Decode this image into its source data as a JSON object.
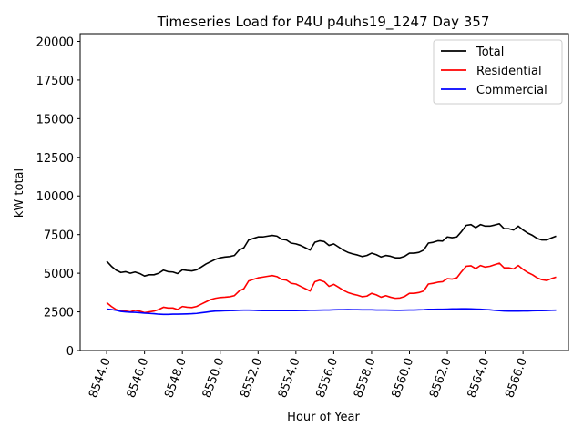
{
  "chart_data": {
    "type": "line",
    "title": "Timeseries Load for P4U p4uhs19_1247  Day 357",
    "xlabel": "Hour of Year",
    "ylabel": "kW total",
    "xlim": [
      8542.6,
      8568.4
    ],
    "ylim": [
      0,
      20500
    ],
    "xticks": [
      8544,
      8546,
      8548,
      8550,
      8552,
      8554,
      8556,
      8558,
      8560,
      8562,
      8564,
      8566
    ],
    "xtick_labels": [
      "8544.0",
      "8546.0",
      "8548.0",
      "8550.0",
      "8552.0",
      "8554.0",
      "8556.0",
      "8558.0",
      "8560.0",
      "8562.0",
      "8564.0",
      "8566.0"
    ],
    "yticks": [
      0,
      2500,
      5000,
      7500,
      10000,
      12500,
      15000,
      17500,
      20000
    ],
    "ytick_labels": [
      "0",
      "2500",
      "5000",
      "7500",
      "10000",
      "12500",
      "15000",
      "17500",
      "20000"
    ],
    "legend_position": "top-right",
    "grid": false,
    "x": [
      8544.0,
      8544.25,
      8544.5,
      8544.75,
      8545.0,
      8545.25,
      8545.5,
      8545.75,
      8546.0,
      8546.25,
      8546.5,
      8546.75,
      8547.0,
      8547.25,
      8547.5,
      8547.75,
      8548.0,
      8548.25,
      8548.5,
      8548.75,
      8549.0,
      8549.25,
      8549.5,
      8549.75,
      8550.0,
      8550.25,
      8550.5,
      8550.75,
      8551.0,
      8551.25,
      8551.5,
      8551.75,
      8552.0,
      8552.25,
      8552.5,
      8552.75,
      8553.0,
      8553.25,
      8553.5,
      8553.75,
      8554.0,
      8554.25,
      8554.5,
      8554.75,
      8555.0,
      8555.25,
      8555.5,
      8555.75,
      8556.0,
      8556.25,
      8556.5,
      8556.75,
      8557.0,
      8557.25,
      8557.5,
      8557.75,
      8558.0,
      8558.25,
      8558.5,
      8558.75,
      8559.0,
      8559.25,
      8559.5,
      8559.75,
      8560.0,
      8560.25,
      8560.5,
      8560.75,
      8561.0,
      8561.25,
      8561.5,
      8561.75,
      8562.0,
      8562.25,
      8562.5,
      8562.75,
      8563.0,
      8563.25,
      8563.5,
      8563.75,
      8564.0,
      8564.25,
      8564.5,
      8564.75,
      8565.0,
      8565.25,
      8565.5,
      8565.75,
      8566.0,
      8566.25,
      8566.5,
      8566.75,
      8567.0,
      8567.25,
      8567.5,
      8567.75
    ],
    "series": [
      {
        "name": "Total",
        "color": "#000000",
        "values": [
          5780,
          5450,
          5200,
          5050,
          5100,
          5000,
          5080,
          4980,
          4820,
          4900,
          4900,
          5000,
          5200,
          5100,
          5080,
          4980,
          5220,
          5180,
          5150,
          5220,
          5400,
          5600,
          5750,
          5900,
          6000,
          6050,
          6080,
          6150,
          6500,
          6650,
          7150,
          7250,
          7350,
          7350,
          7400,
          7450,
          7400,
          7200,
          7150,
          6950,
          6900,
          6800,
          6650,
          6500,
          7000,
          7100,
          7050,
          6800,
          6900,
          6700,
          6500,
          6350,
          6250,
          6180,
          6080,
          6150,
          6300,
          6200,
          6050,
          6150,
          6100,
          6000,
          6000,
          6100,
          6300,
          6300,
          6350,
          6500,
          6950,
          7000,
          7100,
          7080,
          7350,
          7300,
          7350,
          7700,
          8100,
          8150,
          7950,
          8150,
          8050,
          8050,
          8120,
          8200,
          7880,
          7880,
          7800,
          8050,
          7800,
          7600,
          7450,
          7250,
          7150,
          7150,
          7280,
          7400
        ]
      },
      {
        "name": "Residential",
        "color": "#ff0000",
        "values": [
          3100,
          2850,
          2650,
          2550,
          2550,
          2500,
          2600,
          2550,
          2450,
          2500,
          2550,
          2650,
          2800,
          2750,
          2750,
          2650,
          2850,
          2800,
          2780,
          2850,
          3000,
          3150,
          3300,
          3380,
          3430,
          3450,
          3480,
          3550,
          3850,
          4000,
          4500,
          4600,
          4700,
          4750,
          4800,
          4850,
          4780,
          4600,
          4550,
          4350,
          4300,
          4150,
          4000,
          3850,
          4450,
          4550,
          4450,
          4150,
          4280,
          4100,
          3900,
          3750,
          3650,
          3580,
          3480,
          3520,
          3700,
          3600,
          3450,
          3550,
          3450,
          3380,
          3400,
          3500,
          3700,
          3700,
          3750,
          3850,
          4300,
          4350,
          4420,
          4450,
          4650,
          4620,
          4700,
          5100,
          5450,
          5480,
          5300,
          5500,
          5400,
          5450,
          5550,
          5650,
          5350,
          5350,
          5280,
          5500,
          5250,
          5050,
          4900,
          4700,
          4580,
          4530,
          4650,
          4750
        ]
      },
      {
        "name": "Commercial",
        "color": "#0000ff",
        "values": [
          2680,
          2650,
          2600,
          2530,
          2500,
          2480,
          2470,
          2450,
          2420,
          2400,
          2380,
          2350,
          2340,
          2340,
          2350,
          2350,
          2360,
          2370,
          2380,
          2400,
          2440,
          2480,
          2520,
          2550,
          2560,
          2570,
          2580,
          2590,
          2600,
          2610,
          2610,
          2600,
          2590,
          2580,
          2580,
          2580,
          2580,
          2580,
          2580,
          2580,
          2580,
          2590,
          2590,
          2600,
          2600,
          2610,
          2620,
          2620,
          2630,
          2640,
          2640,
          2650,
          2640,
          2640,
          2630,
          2630,
          2630,
          2620,
          2620,
          2620,
          2610,
          2600,
          2600,
          2610,
          2620,
          2620,
          2630,
          2640,
          2660,
          2660,
          2670,
          2670,
          2680,
          2690,
          2690,
          2700,
          2700,
          2690,
          2680,
          2670,
          2650,
          2630,
          2600,
          2580,
          2560,
          2550,
          2550,
          2550,
          2560,
          2560,
          2570,
          2580,
          2580,
          2590,
          2600,
          2610
        ]
      }
    ]
  }
}
